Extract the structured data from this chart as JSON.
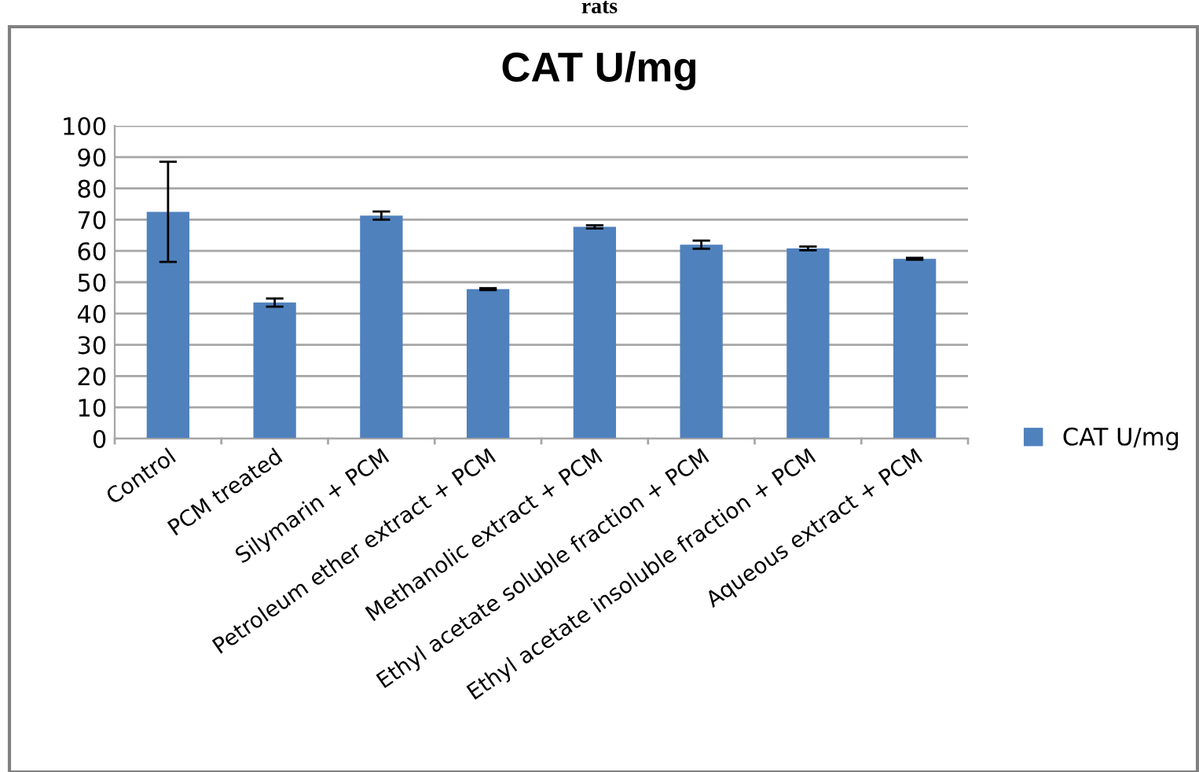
{
  "chart_data": {
    "type": "bar",
    "title": "CAT U/mg",
    "annotations": [
      "rats"
    ],
    "categories": [
      "Control",
      "PCM treated",
      "Silymarin + PCM",
      "Petroleum ether extract + PCM",
      "Methanolic extract + PCM",
      "Ethyl acetate soluble fraction + PCM",
      "Ethyl acetate insoluble fraction + PCM",
      "Aqueous extract + PCM"
    ],
    "series": [
      {
        "name": "CAT U/mg",
        "color": "#4f81bd",
        "values": [
          72.5,
          43.5,
          71.3,
          47.8,
          67.7,
          62,
          60.8,
          57.5
        ],
        "errors": [
          16,
          1.3,
          1.3,
          0.3,
          0.5,
          1.3,
          0.6,
          0.3
        ]
      }
    ],
    "ylim": [
      0,
      100
    ],
    "yticks": [
      0,
      10,
      20,
      30,
      40,
      50,
      60,
      70,
      80,
      90,
      100
    ],
    "grid": "y",
    "legend": "right"
  }
}
